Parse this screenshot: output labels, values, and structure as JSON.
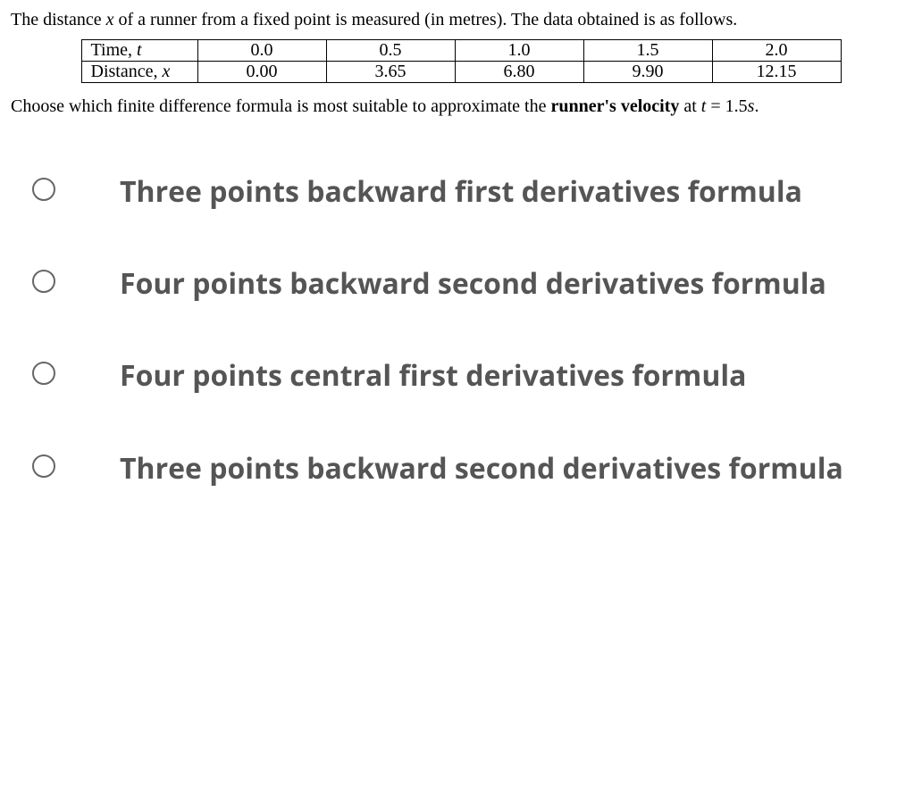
{
  "intro": {
    "prefix": "The distance ",
    "var_x": "x",
    "rest": " of a runner from a fixed point is measured (in metres).  The data obtained is as follows."
  },
  "table": {
    "row1_label_prefix": "Time, ",
    "row1_label_var": "t",
    "row1": [
      "0.0",
      "0.5",
      "1.0",
      "1.5",
      "2.0"
    ],
    "row2_label_prefix": "Distance, ",
    "row2_label_var": "x",
    "row2": [
      "0.00",
      "3.65",
      "6.80",
      "9.90",
      "12.15"
    ]
  },
  "prompt": {
    "prefix": "Choose which finite difference formula is most suitable to approximate the ",
    "bold": "runner's velocity",
    "mid": " at ",
    "var_t": "t ",
    "eq": "= 1.5",
    "unit": "s",
    "end": "."
  },
  "options": [
    "Three points backward first derivatives formula",
    "Four points backward second derivatives formula",
    "Four points central first derivatives formula",
    "Three points backward second derivatives formula"
  ]
}
